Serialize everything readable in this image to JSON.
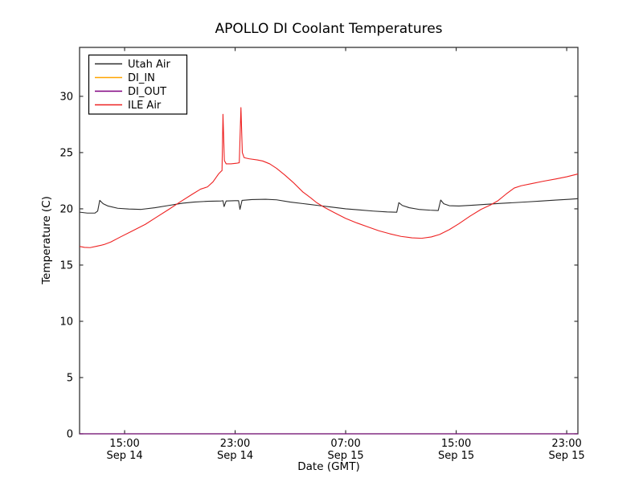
{
  "chart_data": {
    "type": "line",
    "title": "APOLLO DI Coolant Temperatures",
    "xlabel": "Date (GMT)",
    "ylabel": "Temperature (C)",
    "x_unit": "hours since Sep 14 00:00 GMT",
    "xlim": [
      11.74,
      47.81
    ],
    "ylim": [
      0,
      34.35
    ],
    "grid": false,
    "legend_position": "upper left",
    "x_ticks": [
      {
        "value": 15,
        "time": "15:00",
        "date": "Sep 14"
      },
      {
        "value": 23,
        "time": "23:00",
        "date": "Sep 14"
      },
      {
        "value": 31,
        "time": "07:00",
        "date": "Sep 15"
      },
      {
        "value": 39,
        "time": "15:00",
        "date": "Sep 15"
      },
      {
        "value": 47,
        "time": "23:00",
        "date": "Sep 15"
      }
    ],
    "y_ticks": [
      0,
      5,
      10,
      15,
      20,
      25,
      30
    ],
    "colors": {
      "utah_air": "#2b2b2b",
      "di_in": "#ffa500",
      "di_out": "#800080",
      "ile_air": "#ee2222"
    },
    "series": [
      {
        "name": "Utah Air",
        "color": "#2b2b2b",
        "points": [
          [
            11.75,
            19.7
          ],
          [
            12.3,
            19.62
          ],
          [
            12.85,
            19.62
          ],
          [
            13.05,
            19.8
          ],
          [
            13.2,
            20.75
          ],
          [
            13.45,
            20.45
          ],
          [
            13.8,
            20.25
          ],
          [
            14.5,
            20.05
          ],
          [
            15.3,
            19.98
          ],
          [
            16.2,
            19.95
          ],
          [
            17.2,
            20.1
          ],
          [
            18.2,
            20.3
          ],
          [
            19.2,
            20.5
          ],
          [
            20.0,
            20.6
          ],
          [
            21.0,
            20.67
          ],
          [
            22.0,
            20.7
          ],
          [
            22.12,
            20.72
          ],
          [
            22.2,
            20.2
          ],
          [
            22.35,
            20.7
          ],
          [
            23.0,
            20.72
          ],
          [
            23.25,
            20.72
          ],
          [
            23.35,
            19.95
          ],
          [
            23.5,
            20.75
          ],
          [
            24.2,
            20.82
          ],
          [
            25.2,
            20.85
          ],
          [
            26.0,
            20.8
          ],
          [
            27.0,
            20.6
          ],
          [
            28.0,
            20.45
          ],
          [
            29.0,
            20.3
          ],
          [
            30.0,
            20.15
          ],
          [
            31.0,
            20.0
          ],
          [
            32.0,
            19.9
          ],
          [
            33.0,
            19.8
          ],
          [
            34.0,
            19.72
          ],
          [
            34.7,
            19.7
          ],
          [
            34.85,
            20.55
          ],
          [
            35.1,
            20.3
          ],
          [
            35.6,
            20.1
          ],
          [
            36.3,
            19.95
          ],
          [
            37.1,
            19.88
          ],
          [
            37.7,
            19.85
          ],
          [
            37.88,
            20.78
          ],
          [
            38.1,
            20.45
          ],
          [
            38.5,
            20.28
          ],
          [
            39.2,
            20.25
          ],
          [
            40.2,
            20.32
          ],
          [
            41.2,
            20.4
          ],
          [
            42.2,
            20.48
          ],
          [
            43.2,
            20.55
          ],
          [
            44.2,
            20.62
          ],
          [
            45.2,
            20.7
          ],
          [
            46.2,
            20.78
          ],
          [
            47.2,
            20.85
          ],
          [
            47.81,
            20.9
          ]
        ]
      },
      {
        "name": "DI_IN",
        "color": "#ffa500",
        "points": [
          [
            11.74,
            0
          ],
          [
            47.81,
            0
          ]
        ]
      },
      {
        "name": "DI_OUT",
        "color": "#800080",
        "points": [
          [
            11.74,
            0
          ],
          [
            47.81,
            0
          ]
        ]
      },
      {
        "name": "ILE Air",
        "color": "#ee2222",
        "points": [
          [
            11.75,
            16.65
          ],
          [
            12.1,
            16.57
          ],
          [
            12.5,
            16.55
          ],
          [
            13.0,
            16.68
          ],
          [
            13.5,
            16.82
          ],
          [
            14.0,
            17.05
          ],
          [
            14.7,
            17.5
          ],
          [
            15.5,
            18.0
          ],
          [
            16.5,
            18.62
          ],
          [
            17.3,
            19.25
          ],
          [
            18.2,
            19.95
          ],
          [
            19.0,
            20.6
          ],
          [
            19.9,
            21.3
          ],
          [
            20.5,
            21.75
          ],
          [
            21.0,
            21.95
          ],
          [
            21.4,
            22.4
          ],
          [
            21.8,
            23.1
          ],
          [
            22.0,
            23.35
          ],
          [
            22.05,
            23.4
          ],
          [
            22.12,
            28.4
          ],
          [
            22.22,
            24.3
          ],
          [
            22.35,
            24.0
          ],
          [
            22.7,
            24.0
          ],
          [
            23.1,
            24.05
          ],
          [
            23.3,
            24.1
          ],
          [
            23.42,
            29.0
          ],
          [
            23.52,
            25.0
          ],
          [
            23.65,
            24.55
          ],
          [
            24.0,
            24.45
          ],
          [
            24.6,
            24.35
          ],
          [
            25.0,
            24.25
          ],
          [
            25.5,
            24.0
          ],
          [
            26.0,
            23.6
          ],
          [
            26.6,
            23.0
          ],
          [
            27.2,
            22.35
          ],
          [
            27.9,
            21.5
          ],
          [
            28.5,
            20.95
          ],
          [
            28.9,
            20.55
          ],
          [
            29.5,
            20.1
          ],
          [
            30.2,
            19.65
          ],
          [
            31.0,
            19.15
          ],
          [
            31.8,
            18.75
          ],
          [
            32.6,
            18.4
          ],
          [
            33.4,
            18.05
          ],
          [
            34.2,
            17.78
          ],
          [
            35.0,
            17.55
          ],
          [
            35.8,
            17.42
          ],
          [
            36.5,
            17.38
          ],
          [
            37.2,
            17.5
          ],
          [
            37.8,
            17.72
          ],
          [
            38.5,
            18.15
          ],
          [
            39.2,
            18.68
          ],
          [
            40.0,
            19.35
          ],
          [
            40.8,
            19.95
          ],
          [
            41.5,
            20.35
          ],
          [
            42.0,
            20.7
          ],
          [
            42.6,
            21.3
          ],
          [
            43.2,
            21.85
          ],
          [
            43.7,
            22.05
          ],
          [
            44.5,
            22.25
          ],
          [
            45.3,
            22.45
          ],
          [
            46.2,
            22.65
          ],
          [
            47.0,
            22.85
          ],
          [
            47.81,
            23.1
          ]
        ]
      }
    ]
  }
}
